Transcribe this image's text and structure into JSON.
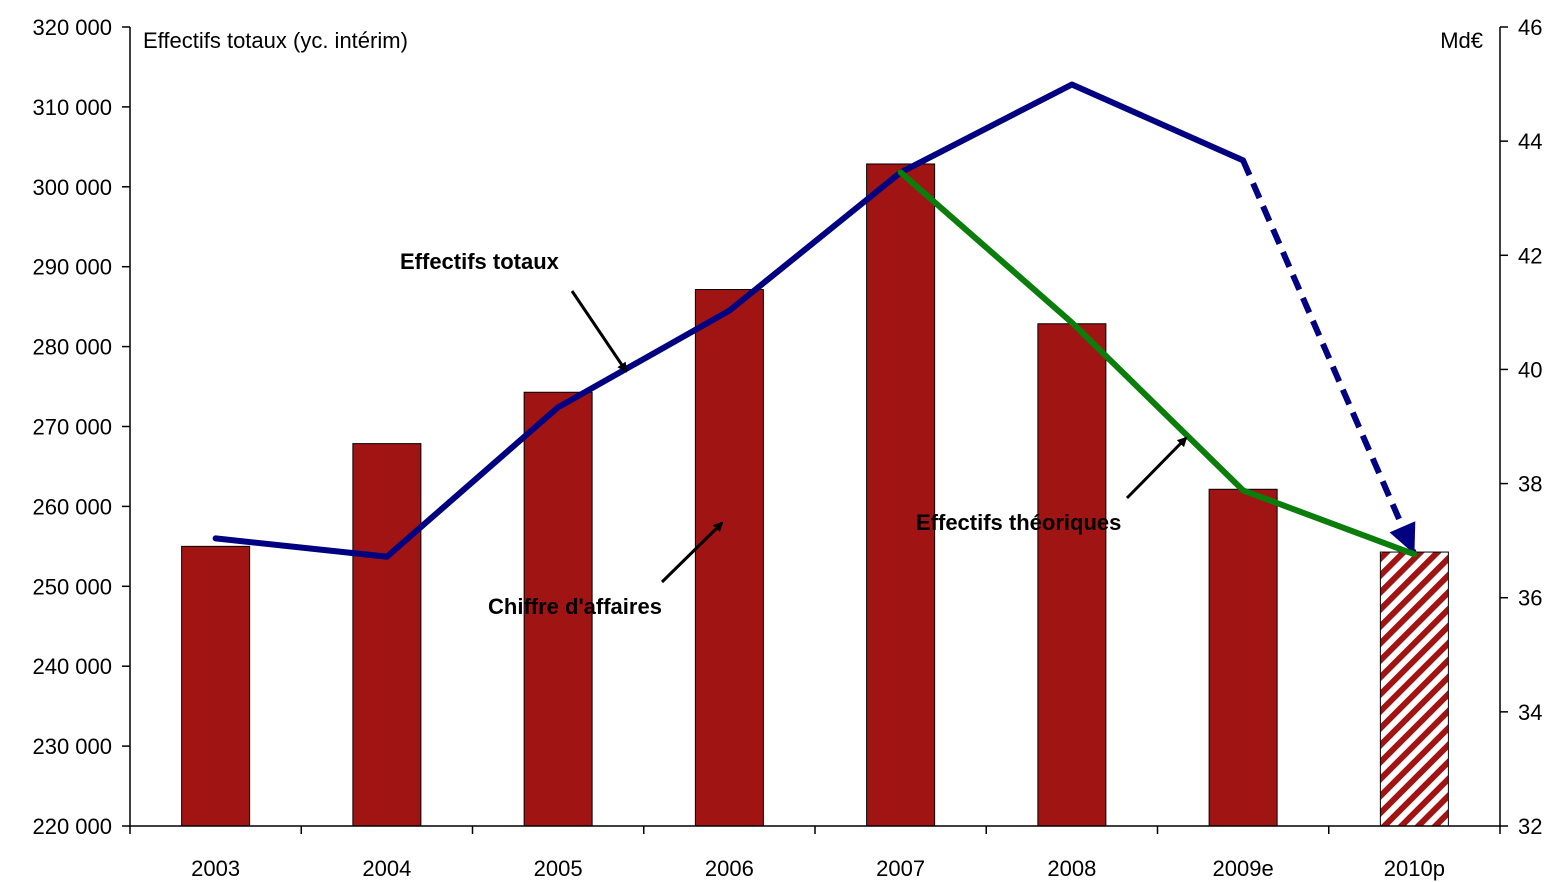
{
  "chart_data": {
    "type": "bar",
    "categories": [
      "2003",
      "2004",
      "2005",
      "2006",
      "2007",
      "2008",
      "2009e",
      "2010p"
    ],
    "left_axis": {
      "title": "Effectifs totaux (yc. intérim)",
      "ylim": [
        220000,
        320000
      ],
      "ticks": [
        "220 000",
        "230 000",
        "240 000",
        "250 000",
        "260 000",
        "270 000",
        "280 000",
        "290 000",
        "300 000",
        "310 000",
        "320 000"
      ],
      "tick_values": [
        220000,
        230000,
        240000,
        250000,
        260000,
        270000,
        280000,
        290000,
        300000,
        310000,
        320000
      ]
    },
    "right_axis": {
      "title": "Md€",
      "ylim": [
        32,
        46
      ],
      "ticks": [
        "32",
        "34",
        "36",
        "38",
        "40",
        "42",
        "44",
        "46"
      ],
      "tick_values": [
        32,
        34,
        36,
        38,
        40,
        42,
        44,
        46
      ]
    },
    "series": [
      {
        "name": "Chiffre d'affaires",
        "kind": "bar",
        "axis": "right",
        "color": "#a01414",
        "values": [
          36.9,
          38.7,
          39.6,
          41.4,
          43.6,
          40.8,
          37.9,
          36.8
        ],
        "hatched_categories": [
          "2010p"
        ]
      },
      {
        "name": "Effectifs totaux",
        "kind": "line",
        "axis": "left",
        "color": "#000080",
        "values": [
          256000,
          253700,
          272400,
          284500,
          301800,
          312800,
          303300,
          null
        ]
      },
      {
        "name": "Effectifs totaux",
        "kind": "line-dashed-arrow",
        "axis": "left",
        "color": "#000080",
        "values": [
          null,
          null,
          null,
          null,
          null,
          null,
          303300,
          254000
        ]
      },
      {
        "name": "Effectifs théoriques",
        "kind": "line",
        "axis": "left",
        "color": "#0a7d0a",
        "values": [
          null,
          null,
          null,
          null,
          301800,
          283000,
          262000,
          254000
        ]
      }
    ],
    "annotations": [
      {
        "text": "Effectifs totaux",
        "target": "Effectifs totaux"
      },
      {
        "text": "Chiffre d'affaires",
        "target": "Chiffre d'affaires"
      },
      {
        "text": "Effectifs théoriques",
        "target": "Effectifs théoriques"
      }
    ],
    "grid": false,
    "legend": "none"
  }
}
